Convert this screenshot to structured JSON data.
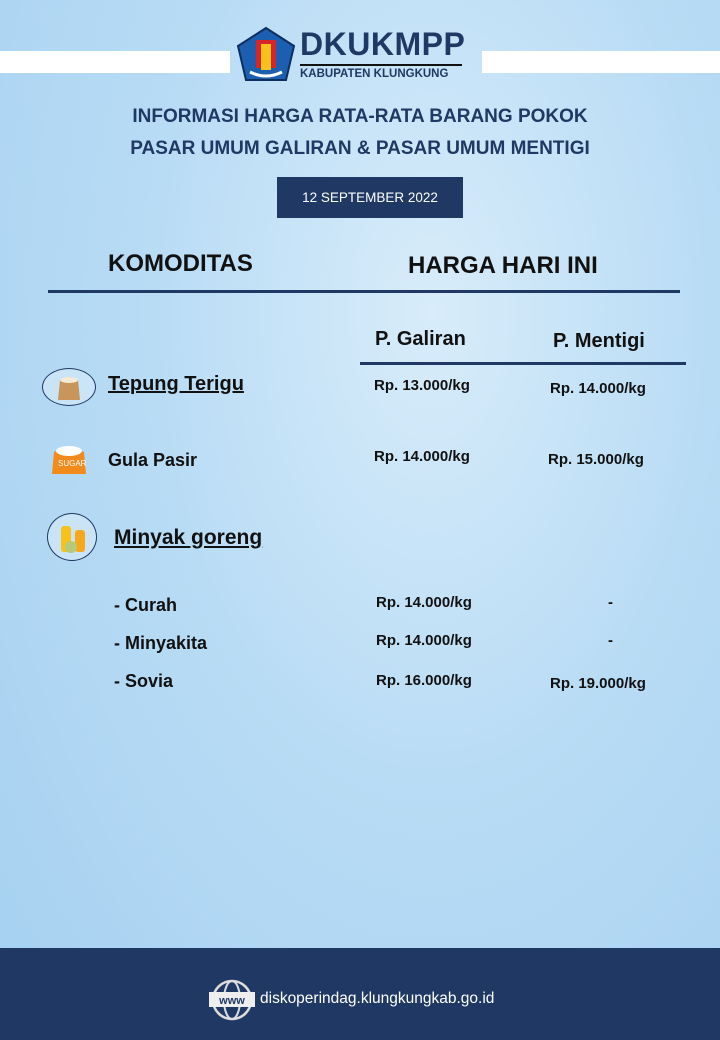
{
  "header": {
    "org": "DKUKMPP",
    "region": "KABUPATEN KLUNGKUNG",
    "logo": "kabupaten-klungkung-emblem"
  },
  "title": {
    "line1": "INFORMASI HARGA RATA-RATA BARANG POKOK",
    "line2": "PASAR UMUM GALIRAN & PASAR UMUM MENTIGI"
  },
  "date": "12 SEPTEMBER 2022",
  "columns": {
    "komoditas": "KOMODITAS",
    "harga": "HARGA HARI INI",
    "galiran": "P. Galiran",
    "mentigi": "P. Mentigi"
  },
  "rows": [
    {
      "name": "Tepung Terigu",
      "icon": "flour-sack-icon",
      "galiran": "Rp. 13.000/kg",
      "mentigi": "Rp. 14.000/kg"
    },
    {
      "name": "Gula Pasir",
      "icon": "sugar-sack-icon",
      "galiran": "Rp. 14.000/kg",
      "mentigi": "Rp. 15.000/kg"
    },
    {
      "name": "Minyak goreng",
      "icon": "cooking-oil-icon"
    },
    {
      "name": "- Curah",
      "galiran": "Rp. 14.000/kg",
      "mentigi": "-"
    },
    {
      "name": "- Minyakita",
      "galiran": "Rp. 14.000/kg",
      "mentigi": "-"
    },
    {
      "name": "- Sovia",
      "galiran": "Rp. 16.000/kg",
      "mentigi": "Rp. 19.000/kg"
    }
  ],
  "footer": {
    "website": "diskoperindag.klungkungkab.go.id",
    "icon_text": "www",
    "bg": "#1f3864"
  }
}
